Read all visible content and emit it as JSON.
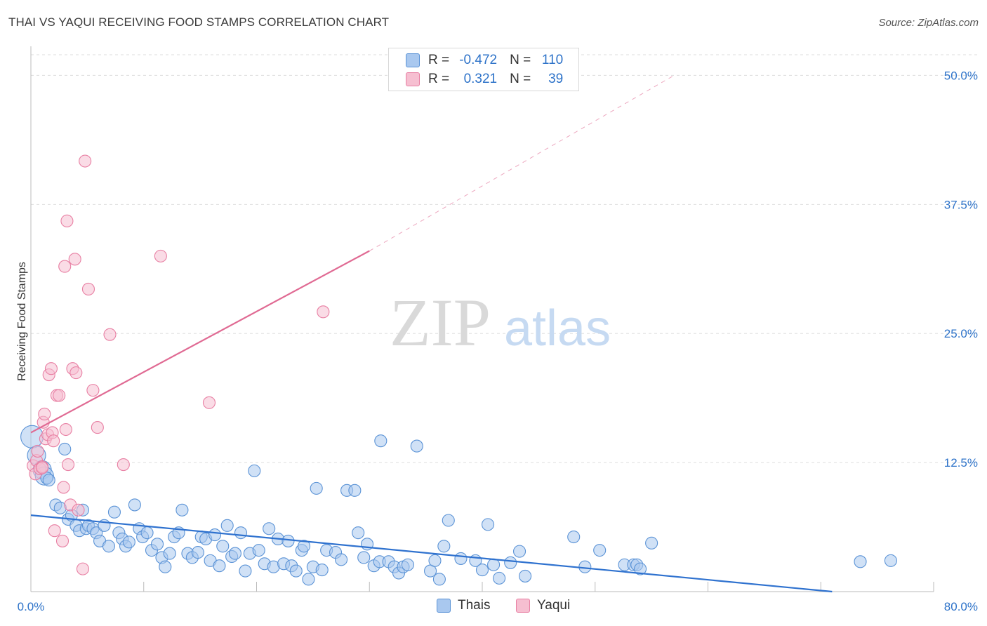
{
  "header": {
    "title": "THAI VS YAQUI RECEIVING FOOD STAMPS CORRELATION CHART",
    "source": "Source: ZipAtlas.com"
  },
  "watermark": {
    "zip": "ZIP",
    "atlas": "atlas"
  },
  "colors": {
    "thais_fill": "#a9c8ef",
    "thais_stroke": "#5b93d6",
    "thais_line": "#2f72cf",
    "yaqui_fill": "#f6bfd1",
    "yaqui_stroke": "#e87fa3",
    "yaqui_line": "#e06a93",
    "axis_value": "#2e73c9",
    "grid": "#dddddd"
  },
  "legend": {
    "rows": [
      {
        "r_label": "R =",
        "r_value": "-0.472",
        "n_label": "N =",
        "n_value": "110"
      },
      {
        "r_label": "R =",
        "r_value": "0.321",
        "n_label": "N =",
        "n_value": "39"
      }
    ],
    "bottom": [
      "Thais",
      "Yaqui"
    ]
  },
  "chart_data": {
    "type": "scatter",
    "title": "THAI VS YAQUI RECEIVING FOOD STAMPS CORRELATION CHART",
    "xlabel": "",
    "ylabel": "Receiving Food Stamps",
    "xlim": [
      0,
      80
    ],
    "ylim": [
      0,
      52
    ],
    "x_tick_labels": [
      "0.0%",
      "80.0%"
    ],
    "y_ticks": [
      12.5,
      25.0,
      37.5,
      50.0
    ],
    "y_tick_labels": [
      "12.5%",
      "25.0%",
      "37.5%",
      "50.0%"
    ],
    "series": [
      {
        "name": "Thais",
        "r": -0.472,
        "n": 110,
        "trend": {
          "x0": 0,
          "y0": 7.4,
          "x1": 71,
          "y1": 0
        },
        "points": [
          [
            0.1,
            15.0
          ],
          [
            0.5,
            13.2
          ],
          [
            1.0,
            11.8
          ],
          [
            1.2,
            11.2
          ],
          [
            1.4,
            11.0
          ],
          [
            1.6,
            10.8
          ],
          [
            3.0,
            13.8
          ],
          [
            2.2,
            8.4
          ],
          [
            2.6,
            8.1
          ],
          [
            3.3,
            7.0
          ],
          [
            3.6,
            7.4
          ],
          [
            4.0,
            6.4
          ],
          [
            4.3,
            5.9
          ],
          [
            4.6,
            7.9
          ],
          [
            4.9,
            6.1
          ],
          [
            5.1,
            6.4
          ],
          [
            5.5,
            6.1
          ],
          [
            5.8,
            5.7
          ],
          [
            6.1,
            4.9
          ],
          [
            6.5,
            6.4
          ],
          [
            6.9,
            4.4
          ],
          [
            7.4,
            7.7
          ],
          [
            7.8,
            5.7
          ],
          [
            8.1,
            5.1
          ],
          [
            8.4,
            4.4
          ],
          [
            8.7,
            4.8
          ],
          [
            9.2,
            8.4
          ],
          [
            9.6,
            6.1
          ],
          [
            9.9,
            5.3
          ],
          [
            10.3,
            5.7
          ],
          [
            10.7,
            4.0
          ],
          [
            11.2,
            4.6
          ],
          [
            11.6,
            3.3
          ],
          [
            11.9,
            2.4
          ],
          [
            12.3,
            3.7
          ],
          [
            12.7,
            5.3
          ],
          [
            13.1,
            5.7
          ],
          [
            13.4,
            7.9
          ],
          [
            13.9,
            3.7
          ],
          [
            14.3,
            3.3
          ],
          [
            14.8,
            3.8
          ],
          [
            15.1,
            5.3
          ],
          [
            15.5,
            5.1
          ],
          [
            15.9,
            3.0
          ],
          [
            16.3,
            5.5
          ],
          [
            16.7,
            2.5
          ],
          [
            17.0,
            4.4
          ],
          [
            17.4,
            6.4
          ],
          [
            17.8,
            3.4
          ],
          [
            18.1,
            3.7
          ],
          [
            18.6,
            5.7
          ],
          [
            19.0,
            2.0
          ],
          [
            19.4,
            3.7
          ],
          [
            19.8,
            11.7
          ],
          [
            20.2,
            4.0
          ],
          [
            20.7,
            2.7
          ],
          [
            21.1,
            6.1
          ],
          [
            21.5,
            2.4
          ],
          [
            21.9,
            5.1
          ],
          [
            22.4,
            2.7
          ],
          [
            22.8,
            4.9
          ],
          [
            23.1,
            2.5
          ],
          [
            23.5,
            2.0
          ],
          [
            24.0,
            4.0
          ],
          [
            24.2,
            4.4
          ],
          [
            24.6,
            1.2
          ],
          [
            25.0,
            2.4
          ],
          [
            25.3,
            10.0
          ],
          [
            25.8,
            2.1
          ],
          [
            26.2,
            4.0
          ],
          [
            27.0,
            3.8
          ],
          [
            27.5,
            3.1
          ],
          [
            28.0,
            9.8
          ],
          [
            28.7,
            9.8
          ],
          [
            29.0,
            5.7
          ],
          [
            29.5,
            3.3
          ],
          [
            29.8,
            4.6
          ],
          [
            30.4,
            2.5
          ],
          [
            30.9,
            2.9
          ],
          [
            31.0,
            14.6
          ],
          [
            31.7,
            2.9
          ],
          [
            32.2,
            2.4
          ],
          [
            32.6,
            1.8
          ],
          [
            33.0,
            2.4
          ],
          [
            33.4,
            2.6
          ],
          [
            34.2,
            14.1
          ],
          [
            35.4,
            2.0
          ],
          [
            35.8,
            3.0
          ],
          [
            36.2,
            1.2
          ],
          [
            36.6,
            4.4
          ],
          [
            37.0,
            6.9
          ],
          [
            38.1,
            3.2
          ],
          [
            39.4,
            3.0
          ],
          [
            40.0,
            2.1
          ],
          [
            40.5,
            6.5
          ],
          [
            41.0,
            2.6
          ],
          [
            41.5,
            1.3
          ],
          [
            42.5,
            2.8
          ],
          [
            43.3,
            3.9
          ],
          [
            43.8,
            1.5
          ],
          [
            48.1,
            5.3
          ],
          [
            49.1,
            2.4
          ],
          [
            50.4,
            4.0
          ],
          [
            52.6,
            2.6
          ],
          [
            53.4,
            2.6
          ],
          [
            53.7,
            2.6
          ],
          [
            54.0,
            2.2
          ],
          [
            55.0,
            4.7
          ],
          [
            73.5,
            2.9
          ],
          [
            76.2,
            3.0
          ]
        ]
      },
      {
        "name": "Yaqui",
        "r": 0.321,
        "n": 39,
        "trend": {
          "x0": 0,
          "y0": 15.4,
          "x1": 30,
          "y1": 33.0,
          "dash_to_x": 57,
          "dash_to_y": 50.0
        },
        "points": [
          [
            0.2,
            12.2
          ],
          [
            0.4,
            11.4
          ],
          [
            0.5,
            12.7
          ],
          [
            0.6,
            13.6
          ],
          [
            0.8,
            11.9
          ],
          [
            1.0,
            12.1
          ],
          [
            1.1,
            16.4
          ],
          [
            1.2,
            17.2
          ],
          [
            1.3,
            14.8
          ],
          [
            1.5,
            15.2
          ],
          [
            1.6,
            21.0
          ],
          [
            1.8,
            21.6
          ],
          [
            1.9,
            15.4
          ],
          [
            2.0,
            14.6
          ],
          [
            2.1,
            5.9
          ],
          [
            2.3,
            19.0
          ],
          [
            2.5,
            19.0
          ],
          [
            2.8,
            4.9
          ],
          [
            2.9,
            10.1
          ],
          [
            3.0,
            31.5
          ],
          [
            3.1,
            15.7
          ],
          [
            3.2,
            35.9
          ],
          [
            3.3,
            12.3
          ],
          [
            3.5,
            8.4
          ],
          [
            3.7,
            21.6
          ],
          [
            3.9,
            32.2
          ],
          [
            4.0,
            21.2
          ],
          [
            4.2,
            7.9
          ],
          [
            4.6,
            2.2
          ],
          [
            4.8,
            41.7
          ],
          [
            5.1,
            29.3
          ],
          [
            5.5,
            19.5
          ],
          [
            5.9,
            15.9
          ],
          [
            7.0,
            24.9
          ],
          [
            8.2,
            12.3
          ],
          [
            11.5,
            32.5
          ],
          [
            15.8,
            18.3
          ],
          [
            25.9,
            27.1
          ],
          [
            1.0,
            12.0
          ]
        ]
      }
    ]
  }
}
